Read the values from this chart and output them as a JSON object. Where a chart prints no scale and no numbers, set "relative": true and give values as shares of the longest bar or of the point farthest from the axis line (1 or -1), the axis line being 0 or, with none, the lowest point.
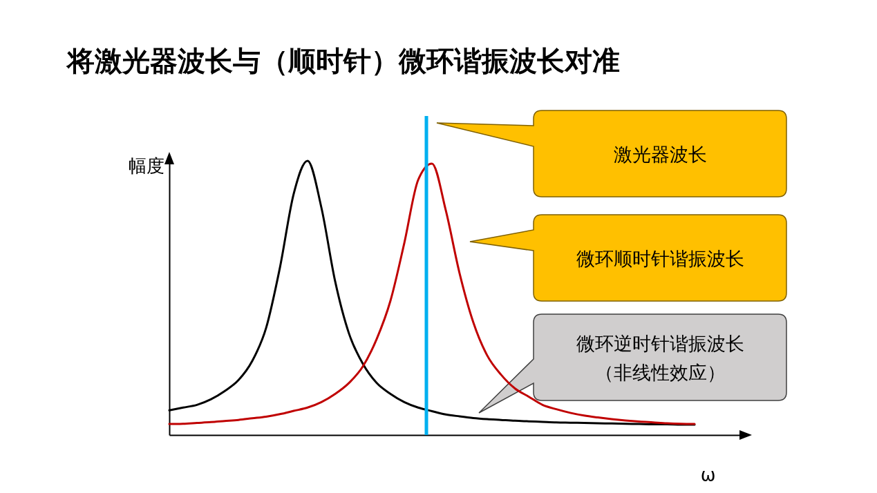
{
  "chart_data": {
    "type": "line",
    "title": "将激光器波长与（顺时针）微环谐振波长对准",
    "xlabel": "ω",
    "ylabel": "幅度",
    "relative": true,
    "legend": false,
    "grid": false,
    "tick_labels": false,
    "categories": [
      null,
      null,
      null,
      null,
      null,
      null,
      null,
      null,
      null,
      null,
      null,
      null,
      null,
      null,
      null,
      null,
      null,
      null,
      null,
      null,
      null,
      null,
      null,
      null,
      null,
      null,
      null,
      null,
      null,
      null,
      null,
      null,
      null,
      null,
      null,
      null,
      null,
      null,
      null
    ],
    "series": [
      {
        "color": "#000000",
        "values": [
          0.09,
          0.1,
          0.11,
          0.13,
          0.16,
          0.2,
          0.27,
          0.39,
          0.61,
          0.88,
          1,
          0.83,
          0.56,
          0.37,
          0.26,
          0.19,
          0.15,
          0.12,
          0.1,
          0.087,
          0.075,
          0.068,
          0.062,
          0.058,
          0.055,
          0.052,
          0.05,
          0.048,
          0.046,
          0.045,
          0.044,
          0.043,
          0.042,
          0.041,
          0.04,
          0.039,
          0.039,
          0.038,
          0.038
        ]
      },
      {
        "color": "#c00000",
        "values": [
          0.04,
          0.041,
          0.044,
          0.047,
          0.051,
          0.055,
          0.061,
          0.067,
          0.076,
          0.088,
          0.1,
          0.12,
          0.15,
          0.19,
          0.25,
          0.35,
          0.49,
          0.7,
          0.93,
          0.99,
          0.82,
          0.59,
          0.41,
          0.29,
          0.22,
          0.17,
          0.14,
          0.11,
          0.094,
          0.081,
          0.071,
          0.064,
          0.058,
          0.053,
          0.049,
          0.046,
          0.043,
          0.041,
          0.04
        ]
      }
    ],
    "annotations": [
      "激光器波长",
      "微环顺时针谐振波长",
      "微环逆时针谐振波长（非线性效应）"
    ]
  }
}
